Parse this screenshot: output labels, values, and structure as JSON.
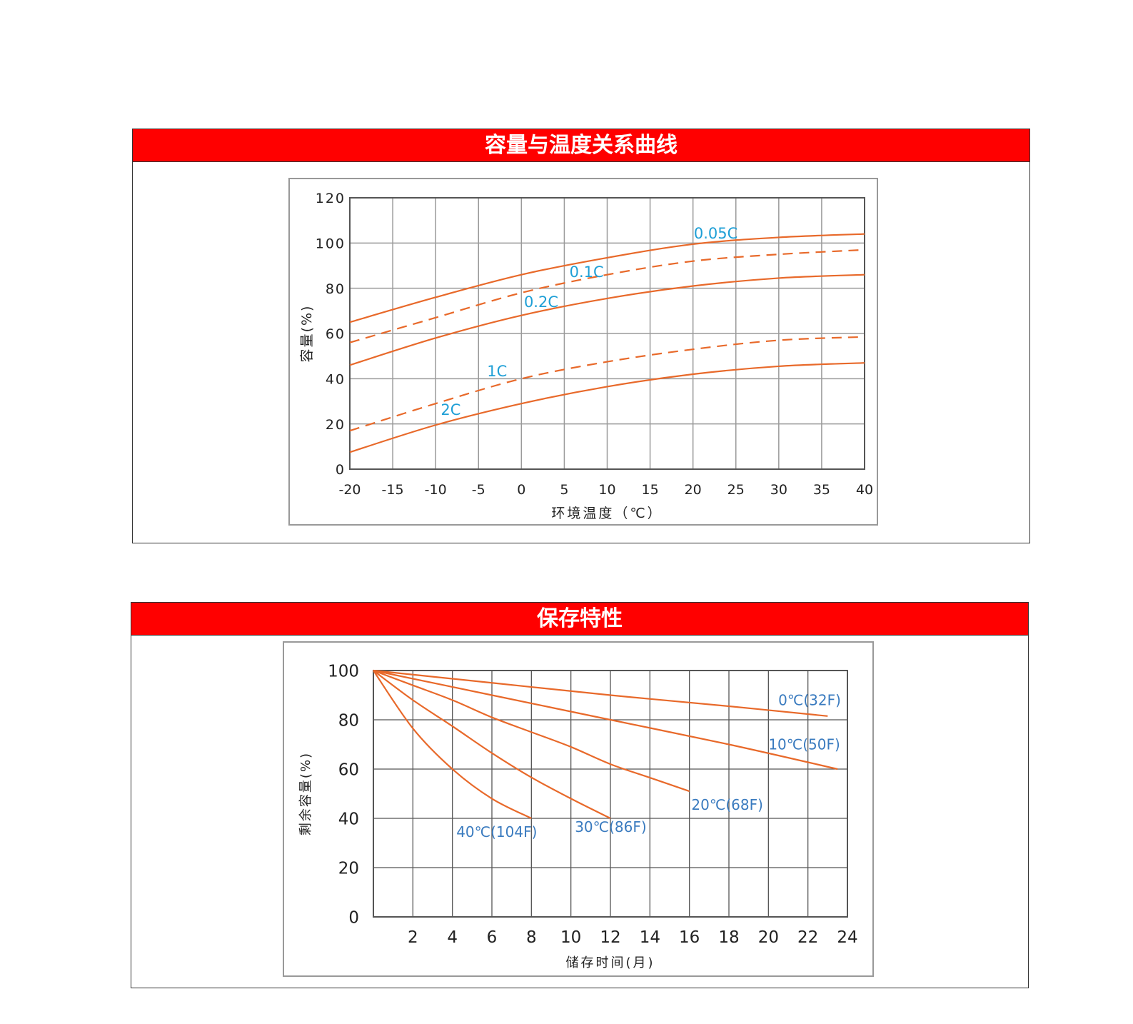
{
  "chart_data": [
    {
      "type": "line",
      "title": "容量与温度关系曲线",
      "xlabel": "环境温度（℃）",
      "ylabel": "容量(%)",
      "xlim": [
        -20,
        40
      ],
      "ylim": [
        0,
        120
      ],
      "xticks": [
        -20,
        -15,
        -10,
        -5,
        0,
        5,
        10,
        15,
        20,
        25,
        30,
        35,
        40
      ],
      "xtick_labels": [
        "-20",
        "-15",
        "-10",
        "-5",
        "0",
        "5",
        "10",
        "15",
        "20",
        "25",
        "30",
        "35",
        "40"
      ],
      "yticks": [
        0,
        20,
        40,
        60,
        80,
        100,
        120
      ],
      "grid": true,
      "x": [
        -20,
        -10,
        0,
        10,
        20,
        30,
        40
      ],
      "series": [
        {
          "name": "0.05C",
          "style": "solid",
          "values": [
            65,
            76,
            86,
            93.5,
            99.5,
            102.5,
            104
          ]
        },
        {
          "name": "0.1C",
          "style": "dashed",
          "values": [
            56,
            67,
            78,
            86,
            92,
            95,
            97
          ]
        },
        {
          "name": "0.2C",
          "style": "solid",
          "values": [
            46,
            58,
            68,
            75.5,
            81,
            84.5,
            86
          ]
        },
        {
          "name": "1C",
          "style": "dashed",
          "values": [
            17,
            29,
            40,
            47.5,
            53,
            57,
            58.5
          ]
        },
        {
          "name": "2C",
          "style": "solid",
          "values": [
            7.5,
            19.5,
            29,
            36.5,
            42,
            45.5,
            47
          ]
        }
      ],
      "colors": {
        "line": "#e8692a",
        "label": "#1e9fd6",
        "grid": "#9a9a9a"
      }
    },
    {
      "type": "line",
      "title": "保存特性",
      "xlabel": "储存时间(月)",
      "ylabel": "剩余容量(%)",
      "xlim": [
        0,
        24
      ],
      "ylim": [
        0,
        100
      ],
      "xticks": [
        2,
        4,
        6,
        8,
        10,
        12,
        14,
        16,
        18,
        20,
        22,
        24
      ],
      "yticks": [
        0,
        20,
        40,
        60,
        80,
        100
      ],
      "grid": true,
      "series": [
        {
          "name": "0℃(32F)",
          "points": [
            [
              0,
              100
            ],
            [
              6,
              95
            ],
            [
              12,
              90
            ],
            [
              18,
              85.5
            ],
            [
              23,
              81.5
            ]
          ]
        },
        {
          "name": "10℃(50F)",
          "points": [
            [
              0,
              100
            ],
            [
              6,
              90
            ],
            [
              12,
              80
            ],
            [
              18,
              70
            ],
            [
              23.5,
              60
            ]
          ]
        },
        {
          "name": "20℃(68F)",
          "points": [
            [
              0,
              100
            ],
            [
              2,
              94
            ],
            [
              4,
              88
            ],
            [
              6,
              81
            ],
            [
              8,
              75
            ],
            [
              10,
              69
            ],
            [
              12,
              62
            ],
            [
              14,
              56.5
            ],
            [
              16,
              51
            ]
          ]
        },
        {
          "name": "30℃(86F)",
          "points": [
            [
              0,
              100
            ],
            [
              2,
              88
            ],
            [
              4,
              77.4
            ],
            [
              6,
              66.5
            ],
            [
              8,
              56.6
            ],
            [
              10,
              48
            ],
            [
              12,
              40
            ]
          ]
        },
        {
          "name": "40℃(104F)",
          "points": [
            [
              0,
              100
            ],
            [
              2,
              76.5
            ],
            [
              4,
              60
            ],
            [
              6,
              48
            ],
            [
              8,
              40
            ]
          ]
        }
      ],
      "colors": {
        "line": "#e8692a",
        "label": "#3a7bbf",
        "grid": "#555555"
      }
    }
  ]
}
